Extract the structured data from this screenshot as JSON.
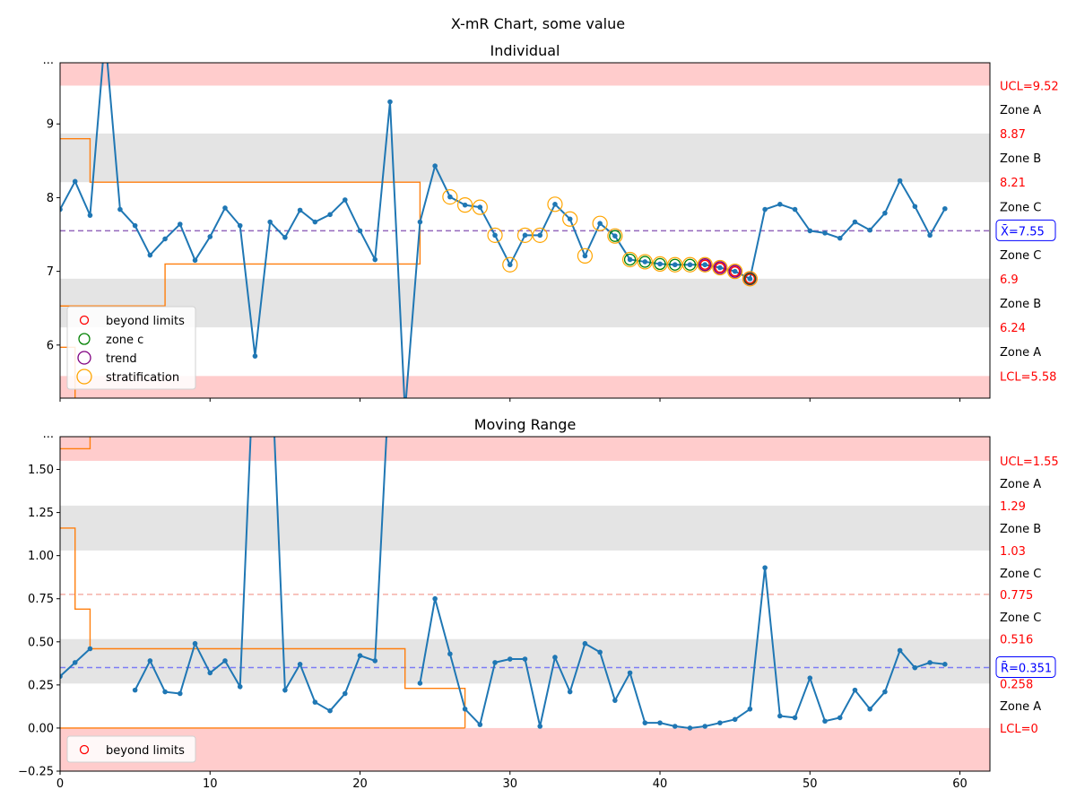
{
  "chart_data": {
    "type": "line",
    "title": "X-mR Chart, some value",
    "colors": {
      "series": "#1f77b4",
      "step": "#ff7f0e",
      "limit_band": "#ffcccc",
      "zone_band": "#e4e4e4",
      "limit_text": "#ff0000",
      "zone_text": "#000000",
      "center_text": "#0000ff",
      "beyond_limits": "#ff0000",
      "zone_c": "#008000",
      "trend": "#800080",
      "stratification": "#ffa500"
    },
    "panels": [
      {
        "id": "individual",
        "title": "Individual",
        "xlim": [
          0,
          62
        ],
        "ylim": [
          5.28,
          9.83
        ],
        "x_ticks": [
          0,
          10,
          20,
          30,
          40,
          50,
          60
        ],
        "x_tick_labels": [
          "",
          "",
          "",
          "",
          "",
          "",
          ""
        ],
        "y_ticks": [
          6,
          7,
          8,
          9
        ],
        "y_tick_labels": [
          "6",
          "7",
          "8",
          "9"
        ],
        "top_overflow_label": "...",
        "center": {
          "value": 7.55,
          "label": "X̄=7.55",
          "color": "#9467bd"
        },
        "bands": [
          {
            "from": 9.52,
            "to": 9.83,
            "kind": "limit"
          },
          {
            "from": 8.21,
            "to": 8.87,
            "kind": "zone"
          },
          {
            "from": 6.24,
            "to": 6.9,
            "kind": "zone"
          },
          {
            "from": 5.28,
            "to": 5.58,
            "kind": "limit"
          }
        ],
        "right_labels": [
          {
            "y": 9.52,
            "text": "UCL=9.52",
            "kind": "limit"
          },
          {
            "y": 9.195,
            "text": "Zone A",
            "kind": "zone"
          },
          {
            "y": 8.87,
            "text": "8.87",
            "kind": "limit"
          },
          {
            "y": 8.54,
            "text": "Zone B",
            "kind": "zone"
          },
          {
            "y": 8.21,
            "text": "8.21",
            "kind": "limit"
          },
          {
            "y": 7.88,
            "text": "Zone C",
            "kind": "zone"
          },
          {
            "y": 7.225,
            "text": "Zone C",
            "kind": "zone"
          },
          {
            "y": 6.9,
            "text": "6.9",
            "kind": "limit"
          },
          {
            "y": 6.57,
            "text": "Zone B",
            "kind": "zone"
          },
          {
            "y": 6.24,
            "text": "6.24",
            "kind": "limit"
          },
          {
            "y": 5.91,
            "text": "Zone A",
            "kind": "zone"
          },
          {
            "y": 5.58,
            "text": "LCL=5.58",
            "kind": "limit"
          }
        ],
        "series": {
          "x": [
            0,
            1,
            2,
            3,
            4,
            5,
            6,
            7,
            8,
            9,
            10,
            11,
            12,
            13,
            14,
            15,
            16,
            17,
            18,
            19,
            20,
            21,
            22,
            23,
            24,
            25,
            26,
            27,
            28,
            29,
            30,
            31,
            32,
            33,
            34,
            35,
            36,
            37,
            38,
            39,
            40,
            41,
            42,
            43,
            44,
            45,
            46,
            47,
            48,
            49,
            50,
            51,
            52,
            53,
            54,
            55,
            56,
            57,
            58,
            59
          ],
          "values": [
            7.84,
            8.22,
            7.76,
            10.2,
            7.84,
            7.62,
            7.22,
            7.44,
            7.64,
            7.15,
            7.47,
            7.86,
            7.62,
            5.85,
            7.67,
            7.46,
            7.83,
            7.67,
            7.77,
            7.97,
            7.55,
            7.16,
            9.3,
            5.1,
            7.67,
            8.43,
            8.01,
            7.9,
            7.87,
            7.49,
            7.09,
            7.49,
            7.49,
            7.91,
            7.71,
            7.21,
            7.65,
            7.48,
            7.16,
            7.13,
            7.1,
            7.09,
            7.09,
            7.09,
            7.05,
            7.0,
            6.9,
            7.84,
            7.91,
            7.84,
            7.55,
            7.52,
            7.45,
            7.67,
            7.56,
            7.79,
            8.23,
            7.88,
            7.49,
            7.85
          ]
        },
        "step_series": [
          {
            "x": [
              0,
              2,
              2,
              7,
              7,
              24,
              24
            ],
            "y": [
              8.8,
              8.8,
              8.21,
              8.21,
              8.21,
              8.21,
              7.65
            ]
          },
          {
            "x": [
              0,
              7,
              7,
              24,
              24
            ],
            "y": [
              6.53,
              6.53,
              7.1,
              7.1,
              7.65
            ]
          },
          {
            "x": [
              0,
              1,
              1
            ],
            "y": [
              5.97,
              5.97,
              5.28
            ]
          }
        ],
        "markers": {
          "stratification": [
            26,
            27,
            28,
            29,
            30,
            31,
            32,
            33,
            34,
            35,
            36,
            37,
            38,
            39,
            40,
            41,
            42,
            43,
            44,
            45,
            46
          ],
          "zone_c": [
            37,
            38,
            39,
            40,
            41,
            42,
            46
          ],
          "trend": [
            43,
            44,
            45,
            46
          ],
          "beyond_limits": [
            43,
            44,
            45,
            46
          ]
        },
        "legend": [
          "beyond limits",
          "zone c",
          "trend",
          "stratification"
        ]
      },
      {
        "id": "moving_range",
        "title": "Moving Range",
        "xlim": [
          0,
          62
        ],
        "ylim": [
          -0.25,
          1.69
        ],
        "x_ticks": [
          0,
          10,
          20,
          30,
          40,
          50,
          60
        ],
        "x_tick_labels": [
          "0",
          "10",
          "20",
          "30",
          "40",
          "50",
          "60"
        ],
        "y_ticks": [
          -0.25,
          0.0,
          0.25,
          0.5,
          0.75,
          1.0,
          1.25,
          1.5
        ],
        "y_tick_labels": [
          "−0.25",
          "0.00",
          "0.25",
          "0.50",
          "0.75",
          "1.00",
          "1.25",
          "1.50"
        ],
        "top_overflow_label": "...",
        "center": {
          "value": 0.351,
          "label": "R̄=0.351",
          "color": "#7b7bf5"
        },
        "extra_line": {
          "value": 0.775,
          "color": "#f5b0a8"
        },
        "bands": [
          {
            "from": 1.55,
            "to": 1.69,
            "kind": "limit"
          },
          {
            "from": 1.03,
            "to": 1.29,
            "kind": "zone"
          },
          {
            "from": 0.258,
            "to": 0.516,
            "kind": "zone"
          },
          {
            "from": -0.25,
            "to": 0.0,
            "kind": "limit"
          }
        ],
        "right_labels": [
          {
            "y": 1.55,
            "text": "UCL=1.55",
            "kind": "limit"
          },
          {
            "y": 1.42,
            "text": "Zone A",
            "kind": "zone"
          },
          {
            "y": 1.29,
            "text": "1.29",
            "kind": "limit"
          },
          {
            "y": 1.16,
            "text": "Zone B",
            "kind": "zone"
          },
          {
            "y": 1.03,
            "text": "1.03",
            "kind": "limit"
          },
          {
            "y": 0.9,
            "text": "Zone C",
            "kind": "zone"
          },
          {
            "y": 0.775,
            "text": "0.775",
            "kind": "limit"
          },
          {
            "y": 0.645,
            "text": "Zone C",
            "kind": "zone"
          },
          {
            "y": 0.516,
            "text": "0.516",
            "kind": "limit"
          },
          {
            "y": 0.387,
            "text": "Zone B",
            "kind": "zone"
          },
          {
            "y": 0.258,
            "text": "0.258",
            "kind": "limit"
          },
          {
            "y": 0.129,
            "text": "Zone A",
            "kind": "zone"
          },
          {
            "y": 0.0,
            "text": "LCL=0",
            "kind": "limit"
          }
        ],
        "series": {
          "segments": [
            {
              "x": [
                0,
                1,
                2
              ],
              "values": [
                0.3,
                0.38,
                0.46
              ]
            },
            {
              "x": [
                5,
                6,
                7,
                8,
                9,
                10,
                11,
                12,
                13,
                14,
                15,
                16,
                17,
                18,
                19,
                20,
                21,
                22
              ],
              "values": [
                0.22,
                0.39,
                0.21,
                0.2,
                0.49,
                0.32,
                0.39,
                0.24,
                2.3,
                2.3,
                0.22,
                0.37,
                0.15,
                0.1,
                0.2,
                0.42,
                0.39,
                2.1
              ]
            },
            {
              "x": [
                24,
                25,
                26,
                27,
                28,
                29,
                30,
                31,
                32,
                33,
                34,
                35,
                36,
                37,
                38,
                39,
                40,
                41,
                42,
                43,
                44,
                45,
                46,
                47,
                48,
                49,
                50,
                51,
                52,
                53,
                54,
                55,
                56,
                57,
                58,
                59
              ],
              "values": [
                0.26,
                0.75,
                0.43,
                0.11,
                0.02,
                0.38,
                0.4,
                0.4,
                0.01,
                0.41,
                0.21,
                0.49,
                0.44,
                0.16,
                0.32,
                0.03,
                0.03,
                0.01,
                0.0,
                0.01,
                0.03,
                0.05,
                0.11,
                0.93,
                0.07,
                0.06,
                0.29,
                0.04,
                0.06,
                0.22,
                0.11,
                0.21,
                0.45,
                0.35,
                0.38,
                0.37
              ]
            }
          ]
        },
        "step_series": [
          {
            "x": [
              0,
              2,
              2
            ],
            "y": [
              1.62,
              1.62,
              1.69
            ]
          },
          {
            "x": [
              0,
              1,
              1,
              2,
              2,
              23,
              23,
              27,
              27
            ],
            "y": [
              1.16,
              1.16,
              0.69,
              0.69,
              0.46,
              0.46,
              0.23,
              0.23,
              0.0
            ]
          },
          {
            "x": [
              0,
              27
            ],
            "y": [
              0.0,
              0.0
            ]
          }
        ],
        "legend": [
          "beyond limits"
        ]
      }
    ]
  }
}
